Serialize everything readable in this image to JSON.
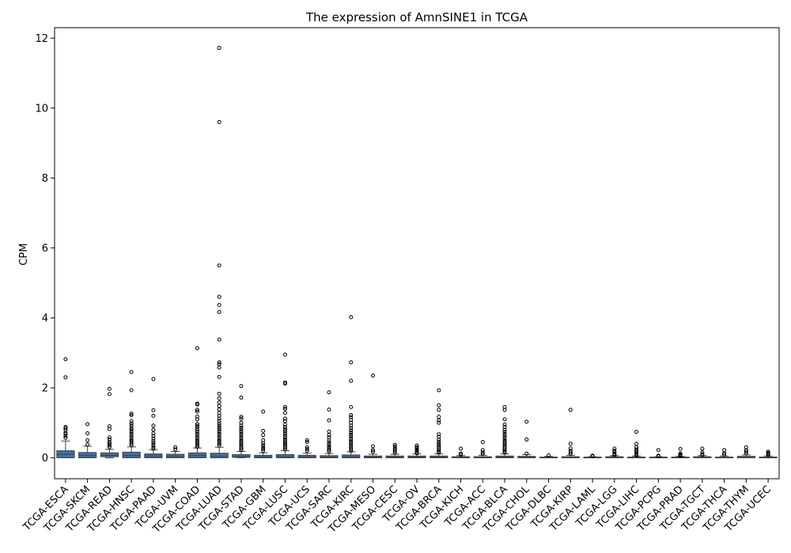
{
  "chart_data": {
    "type": "box",
    "title": "The expression of AmnSINE1 in TCGA",
    "xlabel": "",
    "ylabel": "CPM",
    "ylim": [
      -0.6,
      12.3
    ],
    "yticks": [
      0,
      2,
      4,
      6,
      8,
      10,
      12
    ],
    "grid": false,
    "box_color": "#3f6fa8",
    "categories": [
      "TCGA-ESCA",
      "TCGA-SKCM",
      "TCGA-READ",
      "TCGA-HNSC",
      "TCGA-PAAD",
      "TCGA-UVM",
      "TCGA-COAD",
      "TCGA-LUAD",
      "TCGA-STAD",
      "TCGA-GBM",
      "TCGA-LUSC",
      "TCGA-UCS",
      "TCGA-SARC",
      "TCGA-KIRC",
      "TCGA-MESO",
      "TCGA-CESC",
      "TCGA-OV",
      "TCGA-BRCA",
      "TCGA-KICH",
      "TCGA-ACC",
      "TCGA-BLCA",
      "TCGA-CHOL",
      "TCGA-DLBC",
      "TCGA-KIRP",
      "TCGA-LAML",
      "TCGA-LGG",
      "TCGA-LIHC",
      "TCGA-PCPG",
      "TCGA-PRAD",
      "TCGA-TGCT",
      "TCGA-THCA",
      "TCGA-THYM",
      "TCGA-UCEC"
    ],
    "boxes": [
      {
        "q1": 0.0,
        "median": 0.1,
        "q3": 0.2,
        "whisker_low": 0.0,
        "whisker_high": 0.48,
        "outliers": [
          2.82,
          2.3,
          0.88,
          0.85,
          0.8,
          0.72,
          0.68,
          0.62,
          0.57
        ]
      },
      {
        "q1": 0.0,
        "median": 0.06,
        "q3": 0.15,
        "whisker_low": 0.0,
        "whisker_high": 0.33,
        "outliers": [
          0.96,
          0.7,
          0.5,
          0.38
        ]
      },
      {
        "q1": 0.03,
        "median": 0.07,
        "q3": 0.14,
        "whisker_low": 0.0,
        "whisker_high": 0.24,
        "outliers": [
          1.97,
          1.82,
          0.9,
          0.82,
          0.58,
          0.52,
          0.45,
          0.4,
          0.35,
          0.3
        ]
      },
      {
        "q1": 0.0,
        "median": 0.06,
        "q3": 0.16,
        "whisker_low": 0.0,
        "whisker_high": 0.31,
        "outliers": [
          2.45,
          1.93,
          1.26,
          1.22,
          1.05,
          0.98,
          0.92,
          0.85,
          0.8,
          0.74,
          0.68,
          0.62,
          0.56,
          0.5,
          0.45,
          0.4,
          0.36
        ]
      },
      {
        "q1": 0.0,
        "median": 0.05,
        "q3": 0.11,
        "whisker_low": 0.0,
        "whisker_high": 0.23,
        "outliers": [
          2.25,
          1.36,
          1.2,
          0.92,
          0.8,
          0.7,
          0.62,
          0.55,
          0.48,
          0.42,
          0.36,
          0.3,
          0.26
        ]
      },
      {
        "q1": 0.0,
        "median": 0.04,
        "q3": 0.1,
        "whisker_low": 0.0,
        "whisker_high": 0.18,
        "outliers": [
          0.3,
          0.24
        ]
      },
      {
        "q1": 0.0,
        "median": 0.06,
        "q3": 0.14,
        "whisker_low": 0.0,
        "whisker_high": 0.28,
        "outliers": [
          3.13,
          1.55,
          1.52,
          1.37,
          1.32,
          1.18,
          1.1,
          0.97,
          0.92,
          0.87,
          0.8,
          0.74,
          0.68,
          0.62,
          0.56,
          0.5,
          0.45,
          0.4,
          0.35,
          0.31
        ]
      },
      {
        "q1": 0.0,
        "median": 0.04,
        "q3": 0.13,
        "whisker_low": 0.0,
        "whisker_high": 0.3,
        "outliers": [
          11.72,
          9.6,
          5.5,
          4.6,
          4.37,
          4.17,
          3.38,
          2.73,
          2.68,
          2.58,
          2.31,
          1.83,
          1.7,
          1.58,
          1.48,
          1.38,
          1.28,
          1.2,
          1.12,
          1.05,
          0.98,
          0.92,
          0.86,
          0.8,
          0.74,
          0.68,
          0.62,
          0.56,
          0.5,
          0.45,
          0.4,
          0.35
        ]
      },
      {
        "q1": 0.01,
        "median": 0.04,
        "q3": 0.09,
        "whisker_low": 0.0,
        "whisker_high": 0.18,
        "outliers": [
          2.05,
          1.72,
          1.17,
          1.12,
          1.0,
          0.92,
          0.86,
          0.8,
          0.74,
          0.68,
          0.62,
          0.56,
          0.5,
          0.45,
          0.4,
          0.35,
          0.3,
          0.26,
          0.22
        ]
      },
      {
        "q1": 0.0,
        "median": 0.03,
        "q3": 0.07,
        "whisker_low": 0.0,
        "whisker_high": 0.14,
        "outliers": [
          1.32,
          0.77,
          0.65,
          0.5,
          0.42,
          0.36,
          0.3,
          0.25,
          0.2
        ]
      },
      {
        "q1": 0.0,
        "median": 0.03,
        "q3": 0.09,
        "whisker_low": 0.0,
        "whisker_high": 0.2,
        "outliers": [
          2.95,
          2.15,
          2.12,
          1.45,
          1.4,
          1.28,
          1.12,
          1.05,
          0.95,
          0.88,
          0.82,
          0.76,
          0.7,
          0.64,
          0.58,
          0.52,
          0.47,
          0.42,
          0.37,
          0.32,
          0.28,
          0.24
        ]
      },
      {
        "q1": 0.0,
        "median": 0.03,
        "q3": 0.07,
        "whisker_low": 0.0,
        "whisker_high": 0.13,
        "outliers": [
          0.5,
          0.45,
          0.3,
          0.25,
          0.2
        ]
      },
      {
        "q1": 0.0,
        "median": 0.02,
        "q3": 0.06,
        "whisker_low": 0.0,
        "whisker_high": 0.12,
        "outliers": [
          1.87,
          1.38,
          1.07,
          0.75,
          0.65,
          0.58,
          0.5,
          0.44,
          0.38,
          0.32,
          0.27,
          0.22,
          0.18
        ]
      },
      {
        "q1": 0.0,
        "median": 0.03,
        "q3": 0.08,
        "whisker_low": 0.0,
        "whisker_high": 0.17,
        "outliers": [
          4.02,
          2.73,
          2.2,
          1.45,
          1.22,
          1.16,
          1.08,
          1.0,
          0.92,
          0.85,
          0.78,
          0.72,
          0.66,
          0.6,
          0.54,
          0.48,
          0.43,
          0.38,
          0.33,
          0.28,
          0.24,
          0.2
        ]
      },
      {
        "q1": 0.0,
        "median": 0.02,
        "q3": 0.05,
        "whisker_low": 0.0,
        "whisker_high": 0.1,
        "outliers": [
          2.35,
          0.33,
          0.22,
          0.17
        ]
      },
      {
        "q1": 0.0,
        "median": 0.02,
        "q3": 0.05,
        "whisker_low": 0.0,
        "whisker_high": 0.1,
        "outliers": [
          0.37,
          0.32,
          0.26,
          0.22,
          0.18,
          0.14
        ]
      },
      {
        "q1": 0.0,
        "median": 0.02,
        "q3": 0.05,
        "whisker_low": 0.0,
        "whisker_high": 0.11,
        "outliers": [
          0.35,
          0.3,
          0.27,
          0.23,
          0.2,
          0.16,
          0.13
        ]
      },
      {
        "q1": 0.0,
        "median": 0.02,
        "q3": 0.05,
        "whisker_low": 0.0,
        "whisker_high": 0.11,
        "outliers": [
          1.93,
          1.5,
          1.37,
          1.17,
          1.07,
          1.0,
          0.67,
          0.6,
          0.52,
          0.46,
          0.4,
          0.35,
          0.3,
          0.26,
          0.22,
          0.18,
          0.15
        ]
      },
      {
        "q1": 0.0,
        "median": 0.01,
        "q3": 0.03,
        "whisker_low": 0.0,
        "whisker_high": 0.06,
        "outliers": [
          0.26,
          0.12,
          0.09
        ]
      },
      {
        "q1": 0.0,
        "median": 0.01,
        "q3": 0.03,
        "whisker_low": 0.0,
        "whisker_high": 0.07,
        "outliers": [
          0.45,
          0.22,
          0.15,
          0.11
        ]
      },
      {
        "q1": 0.0,
        "median": 0.02,
        "q3": 0.05,
        "whisker_low": 0.0,
        "whisker_high": 0.11,
        "outliers": [
          1.45,
          1.37,
          1.1,
          0.95,
          0.88,
          0.8,
          0.74,
          0.68,
          0.62,
          0.56,
          0.5,
          0.45,
          0.4,
          0.35,
          0.3,
          0.26,
          0.22,
          0.18,
          0.15
        ]
      },
      {
        "q1": 0.0,
        "median": 0.02,
        "q3": 0.04,
        "whisker_low": 0.0,
        "whisker_high": 0.09,
        "outliers": [
          1.03,
          0.52,
          0.12
        ]
      },
      {
        "q1": 0.0,
        "median": 0.01,
        "q3": 0.02,
        "whisker_low": 0.0,
        "whisker_high": 0.04,
        "outliers": [
          0.07
        ]
      },
      {
        "q1": 0.0,
        "median": 0.01,
        "q3": 0.03,
        "whisker_low": 0.0,
        "whisker_high": 0.07,
        "outliers": [
          1.37,
          0.4,
          0.27,
          0.2,
          0.15,
          0.11
        ]
      },
      {
        "q1": 0.0,
        "median": 0.01,
        "q3": 0.02,
        "whisker_low": 0.0,
        "whisker_high": 0.03,
        "outliers": [
          0.06,
          0.04
        ]
      },
      {
        "q1": 0.0,
        "median": 0.01,
        "q3": 0.03,
        "whisker_low": 0.0,
        "whisker_high": 0.06,
        "outliers": [
          0.26,
          0.2,
          0.15,
          0.11,
          0.08
        ]
      },
      {
        "q1": 0.0,
        "median": 0.01,
        "q3": 0.02,
        "whisker_low": 0.0,
        "whisker_high": 0.05,
        "outliers": [
          0.74,
          0.4,
          0.3,
          0.24,
          0.2,
          0.16,
          0.12,
          0.09,
          0.07
        ]
      },
      {
        "q1": 0.0,
        "median": 0.01,
        "q3": 0.02,
        "whisker_low": 0.0,
        "whisker_high": 0.03,
        "outliers": [
          0.22,
          0.06,
          0.04
        ]
      },
      {
        "q1": 0.0,
        "median": 0.01,
        "q3": 0.02,
        "whisker_low": 0.0,
        "whisker_high": 0.04,
        "outliers": [
          0.25,
          0.12,
          0.09,
          0.07,
          0.05
        ]
      },
      {
        "q1": 0.0,
        "median": 0.01,
        "q3": 0.03,
        "whisker_low": 0.0,
        "whisker_high": 0.06,
        "outliers": [
          0.26,
          0.15,
          0.1,
          0.08
        ]
      },
      {
        "q1": 0.0,
        "median": 0.01,
        "q3": 0.02,
        "whisker_low": 0.0,
        "whisker_high": 0.05,
        "outliers": [
          0.22,
          0.13,
          0.09
        ]
      },
      {
        "q1": 0.0,
        "median": 0.01,
        "q3": 0.04,
        "whisker_low": 0.0,
        "whisker_high": 0.08,
        "outliers": [
          0.3,
          0.22,
          0.17,
          0.13
        ]
      },
      {
        "q1": 0.0,
        "median": 0.01,
        "q3": 0.02,
        "whisker_low": 0.0,
        "whisker_high": 0.05,
        "outliers": [
          0.17,
          0.14,
          0.11,
          0.08
        ]
      }
    ]
  }
}
